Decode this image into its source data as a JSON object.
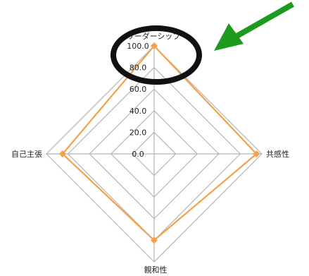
{
  "chart_data": {
    "type": "radar",
    "axes": [
      "リーダーシップ",
      "共感性",
      "親和性",
      "自己主張"
    ],
    "ticks": [
      "0.0",
      "20.0",
      "40.0",
      "60.0",
      "80.0",
      "100.0"
    ],
    "rmax": 100,
    "series": [
      {
        "values": [
          100,
          95,
          80,
          85
        ],
        "color": "#f5a04a"
      }
    ],
    "grid": true
  },
  "annotations": {
    "highlight_ring_color": "#111111",
    "arrow_color": "#1e9a1e"
  }
}
